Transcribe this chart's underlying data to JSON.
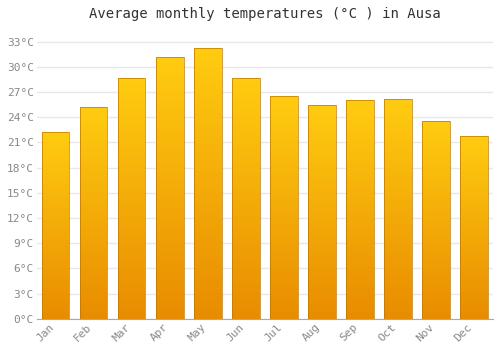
{
  "title": "Average monthly temperatures (°C ) in Ausa",
  "months": [
    "Jan",
    "Feb",
    "Mar",
    "Apr",
    "May",
    "Jun",
    "Jul",
    "Aug",
    "Sep",
    "Oct",
    "Nov",
    "Dec"
  ],
  "values": [
    22.3,
    25.2,
    28.7,
    31.2,
    32.3,
    28.7,
    26.5,
    25.5,
    26.0,
    26.2,
    23.5,
    21.8
  ],
  "bar_color_main": "#FFA500",
  "bar_color_light": "#FFD060",
  "bar_edge_color": "#CC8800",
  "background_color": "#ffffff",
  "plot_bg_color": "#ffffff",
  "grid_color": "#e8e8e8",
  "yticks": [
    0,
    3,
    6,
    9,
    12,
    15,
    18,
    21,
    24,
    27,
    30,
    33
  ],
  "ylim": [
    0,
    34.5
  ],
  "title_fontsize": 10,
  "tick_fontsize": 8
}
